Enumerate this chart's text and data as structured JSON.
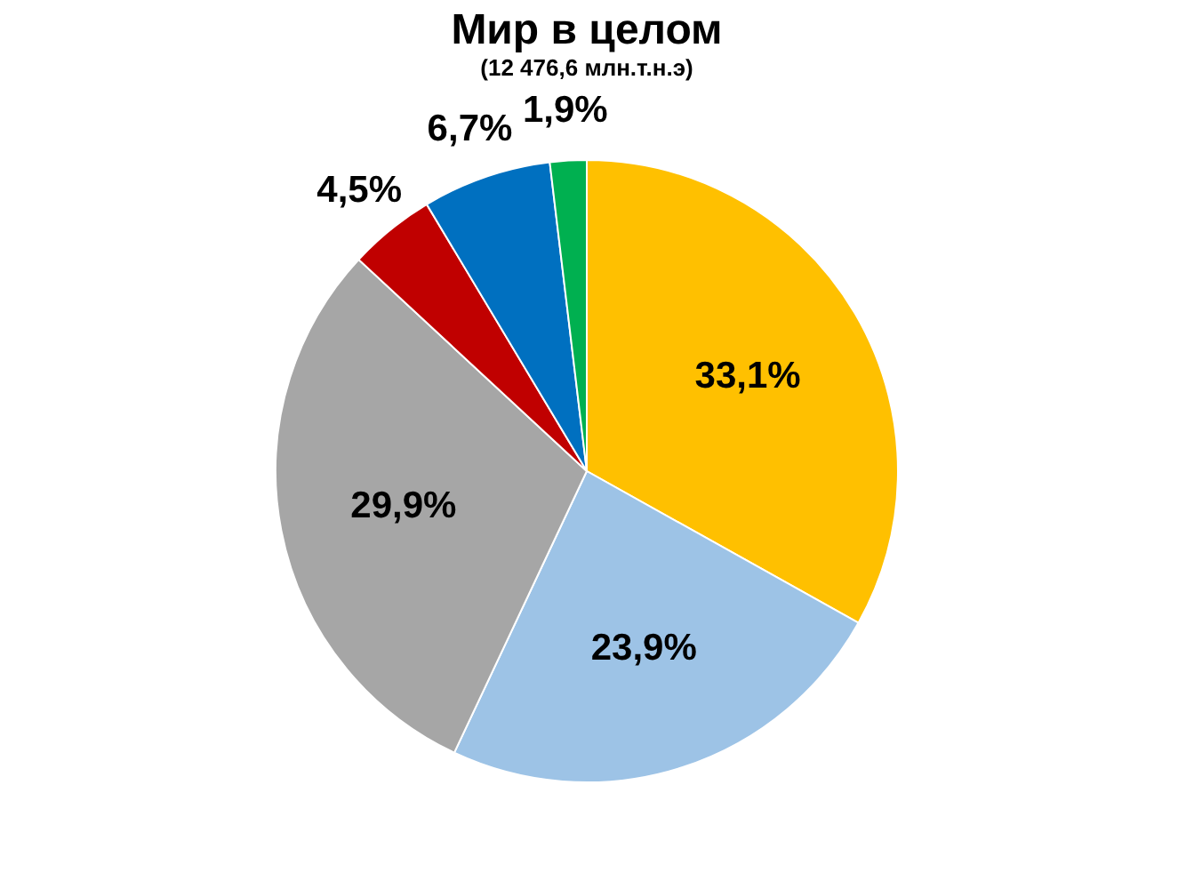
{
  "chart_data": {
    "type": "pie",
    "title": "Мир в целом",
    "subtitle": "(12 476,6 млн.т.н.э)",
    "categories": [
      null,
      null,
      null,
      null,
      null,
      null
    ],
    "values": [
      33.1,
      23.9,
      29.9,
      4.5,
      6.7,
      1.9
    ],
    "colors": [
      "#ffc000",
      "#9dc3e6",
      "#a6a6a6",
      "#c00000",
      "#0070c0",
      "#00b050"
    ],
    "value_labels": [
      "33,1%",
      "23,9%",
      "29,9%",
      "4,5%",
      "6,7%",
      "1,9%"
    ]
  }
}
